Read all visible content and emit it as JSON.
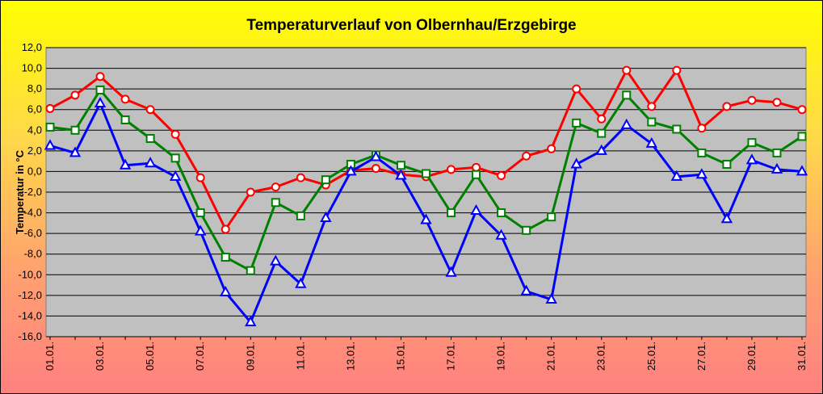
{
  "chart_data": {
    "type": "line",
    "title": "Temperaturverlauf von Olbernhau/Erzgebirge",
    "xlabel": "",
    "ylabel": "Temperatur in °C",
    "ylim": [
      -16,
      12
    ],
    "ytick_step": 2,
    "grid": true,
    "plot_background": "#c0c0c0",
    "categories": [
      "01.01.",
      "02.01.",
      "03.01.",
      "04.01.",
      "05.01.",
      "06.01.",
      "07.01.",
      "08.01.",
      "09.01.",
      "10.01.",
      "11.01.",
      "12.01.",
      "13.01.",
      "14.01.",
      "15.01.",
      "16.01.",
      "17.01.",
      "18.01.",
      "19.01.",
      "20.01.",
      "21.01.",
      "22.01.",
      "23.01.",
      "24.01.",
      "25.01.",
      "26.01.",
      "27.01.",
      "28.01.",
      "29.01.",
      "30.01.",
      "31.01."
    ],
    "x_tick_labels": [
      "01.01.",
      "",
      "03.01.",
      "",
      "05.01.",
      "",
      "07.01.",
      "",
      "09.01.",
      "",
      "11.01.",
      "",
      "13.01.",
      "",
      "15.01.",
      "",
      "17.01.",
      "",
      "19.01.",
      "",
      "21.01.",
      "",
      "23.01.",
      "",
      "25.01.",
      "",
      "27.01.",
      "",
      "29.01.",
      "",
      "31.01."
    ],
    "series": [
      {
        "color": "#ff0000",
        "marker": "circle",
        "values": [
          6.1,
          7.4,
          9.2,
          7.0,
          6.0,
          3.6,
          -0.6,
          -5.6,
          -2.0,
          -1.5,
          -0.6,
          -1.3,
          0.1,
          0.3,
          -0.3,
          -0.5,
          0.2,
          0.4,
          -0.4,
          1.5,
          2.2,
          8.0,
          5.1,
          9.8,
          6.3,
          9.8,
          4.2,
          6.3,
          6.9,
          6.7,
          6.0
        ]
      },
      {
        "color": "#008000",
        "marker": "square",
        "values": [
          4.3,
          4.0,
          7.9,
          5.0,
          3.2,
          1.3,
          -4.0,
          -8.3,
          -9.6,
          -3.0,
          -4.3,
          -0.8,
          0.7,
          1.6,
          0.6,
          -0.2,
          -4.0,
          -0.3,
          -4.0,
          -5.7,
          -4.4,
          4.7,
          3.7,
          7.4,
          4.8,
          4.1,
          1.8,
          0.7,
          2.8,
          1.8,
          3.4
        ]
      },
      {
        "color": "#0000ff",
        "marker": "triangle",
        "values": [
          2.5,
          1.8,
          6.6,
          0.6,
          0.8,
          -0.5,
          -5.8,
          -11.7,
          -14.6,
          -8.7,
          -10.9,
          -4.5,
          0.0,
          1.4,
          -0.4,
          -4.7,
          -9.8,
          -3.8,
          -6.2,
          -11.6,
          -12.4,
          0.7,
          2.0,
          4.5,
          2.7,
          -0.5,
          -0.3,
          -4.6,
          1.1,
          0.2,
          0.0
        ]
      }
    ]
  }
}
